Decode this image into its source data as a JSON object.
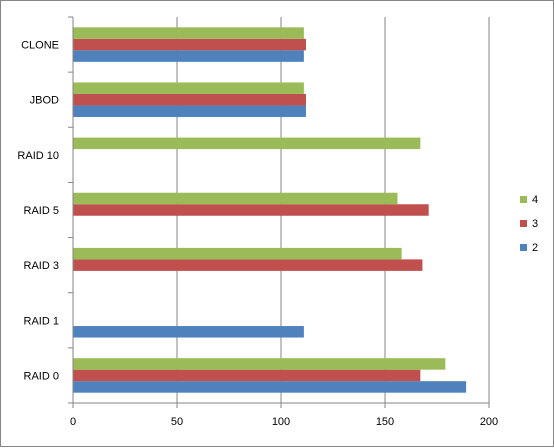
{
  "chart_data": {
    "type": "bar",
    "orientation": "horizontal",
    "categories": [
      "RAID 0",
      "RAID 1",
      "RAID 3",
      "RAID 5",
      "RAID 10",
      "JBOD",
      "CLONE"
    ],
    "series": [
      {
        "name": "2",
        "color": "#4f81bd",
        "values": [
          189,
          111,
          null,
          null,
          null,
          112,
          111
        ]
      },
      {
        "name": "3",
        "color": "#c0504d",
        "values": [
          167,
          null,
          168,
          171,
          null,
          112,
          112
        ]
      },
      {
        "name": "4",
        "color": "#9bbb59",
        "values": [
          179,
          null,
          158,
          156,
          167,
          111,
          111
        ]
      }
    ],
    "x_ticks": [
      "0",
      "50",
      "100",
      "150",
      "200"
    ],
    "xlim": [
      0,
      200
    ],
    "grid": "vertical",
    "legend": {
      "position": "right",
      "order": [
        "4",
        "3",
        "2"
      ]
    },
    "title": "",
    "xlabel": "",
    "ylabel": ""
  }
}
